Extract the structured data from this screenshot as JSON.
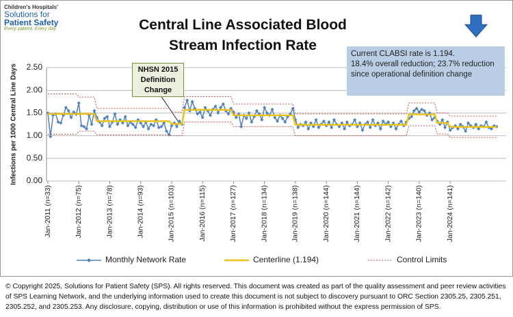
{
  "logo": {
    "lines": [
      "Children's Hospitals'",
      "Solutions for",
      "Patient Safety",
      "Every patient. Every day."
    ]
  },
  "footer": "© Copyright 2025, Solutions for Patient Safety (SPS).  All rights reserved.  This document was created as part of the quality assessment and peer review activities of SPS Learning Network, and the underlying information used to create this document is not subject to discovery pursuant to ORC Section 2305.25, 2305.251, 2305.252, and 2305.253. Any disclosure, copying, distribution or use of this information is prohibited without the express permission of SPS.",
  "chart_data": {
    "type": "line",
    "title": "Central Line Associated Blood Stream Infection Rate",
    "y_label": "Infections per 1000 Central Line Days",
    "info_box": [
      "Current CLABSI rate is 1.194.",
      "18.4% overall reduction; 23.7% reduction since operational definition change"
    ],
    "annotation": "NHSN 2015 Definition Change",
    "ylim": [
      0,
      2.5
    ],
    "yticks": [
      {
        "value": 0,
        "label": "0.00"
      },
      {
        "value": 0.5,
        "label": "0.50"
      },
      {
        "value": 1,
        "label": "1.00"
      },
      {
        "value": 1.5,
        "label": "1.50"
      },
      {
        "value": 2,
        "label": "2.00"
      },
      {
        "value": 2.5,
        "label": "2.50"
      }
    ],
    "grid": true,
    "categories": [
      "Jan-2011 (n=33)",
      null,
      null,
      null,
      null,
      null,
      null,
      null,
      null,
      null,
      null,
      null,
      "Jan-2012 (n=75)",
      null,
      null,
      null,
      null,
      null,
      null,
      null,
      null,
      null,
      null,
      null,
      "Jan-2013 (n=78)",
      null,
      null,
      null,
      null,
      null,
      null,
      null,
      null,
      null,
      null,
      null,
      "Jan-2014 (n=93)",
      null,
      null,
      null,
      null,
      null,
      null,
      null,
      null,
      null,
      null,
      null,
      "Jan-2015 (n=103)",
      null,
      null,
      null,
      null,
      null,
      null,
      null,
      null,
      null,
      null,
      null,
      "Jan-2016 (n=115)",
      null,
      null,
      null,
      null,
      null,
      null,
      null,
      null,
      null,
      null,
      null,
      "Jan-2017 (n=127)",
      null,
      null,
      null,
      null,
      null,
      null,
      null,
      null,
      null,
      null,
      null,
      "Jan-2018 (n=134)",
      null,
      null,
      null,
      null,
      null,
      null,
      null,
      null,
      null,
      null,
      null,
      "Jan-2019 (n=138)",
      null,
      null,
      null,
      null,
      null,
      null,
      null,
      null,
      null,
      null,
      null,
      "Jan-2020 (n=144)",
      null,
      null,
      null,
      null,
      null,
      null,
      null,
      null,
      null,
      null,
      null,
      "Jan-2021 (n=144)",
      null,
      null,
      null,
      null,
      null,
      null,
      null,
      null,
      null,
      null,
      null,
      "Jan-2022 (n=142)",
      null,
      null,
      null,
      null,
      null,
      null,
      null,
      null,
      null,
      null,
      null,
      "Jan-2023 (n=140)",
      null,
      null,
      null,
      null,
      null,
      null,
      null,
      null,
      null,
      null,
      null,
      "Jan-2024 (n=141)",
      null,
      null,
      null,
      null,
      null,
      null,
      null,
      null,
      null,
      null,
      null,
      null,
      null,
      null,
      null,
      null,
      null,
      null
    ],
    "series": [
      {
        "name": "Monthly Network Rate",
        "color": "#4f81bd",
        "marker": "diamond",
        "values": [
          1.5,
          0.98,
          1.45,
          1.48,
          1.3,
          1.28,
          1.45,
          1.62,
          1.55,
          1.4,
          1.52,
          1.47,
          1.72,
          1.22,
          1.2,
          1.15,
          1.45,
          1.25,
          1.55,
          1.4,
          1.3,
          1.22,
          1.38,
          1.42,
          1.2,
          1.3,
          1.48,
          1.25,
          1.35,
          1.28,
          1.42,
          1.22,
          1.3,
          1.25,
          1.18,
          1.35,
          1.28,
          1.2,
          1.3,
          1.15,
          1.25,
          1.22,
          1.35,
          1.18,
          1.2,
          1.28,
          1.1,
          1.02,
          1.22,
          1.28,
          1.2,
          1.32,
          1.25,
          1.62,
          1.78,
          1.55,
          1.75,
          1.6,
          1.48,
          1.52,
          1.4,
          1.62,
          1.55,
          1.45,
          1.58,
          1.65,
          1.5,
          1.62,
          1.7,
          1.55,
          1.48,
          1.6,
          1.52,
          1.4,
          1.48,
          1.2,
          1.45,
          1.38,
          1.5,
          1.3,
          1.42,
          1.55,
          1.48,
          1.35,
          1.62,
          1.5,
          1.45,
          1.58,
          1.4,
          1.32,
          1.45,
          1.38,
          1.3,
          1.42,
          1.48,
          1.6,
          1.35,
          1.18,
          1.25,
          1.22,
          1.3,
          1.15,
          1.28,
          1.2,
          1.35,
          1.18,
          1.25,
          1.32,
          1.22,
          1.3,
          1.18,
          1.35,
          1.25,
          1.2,
          1.28,
          1.15,
          1.3,
          1.22,
          1.25,
          1.35,
          1.2,
          1.28,
          1.12,
          1.25,
          1.3,
          1.18,
          1.35,
          1.22,
          1.28,
          1.15,
          1.32,
          1.25,
          1.3,
          1.2,
          1.28,
          1.15,
          1.25,
          1.32,
          1.22,
          1.3,
          1.38,
          1.42,
          1.55,
          1.6,
          1.52,
          1.58,
          1.55,
          1.45,
          1.5,
          1.35,
          1.4,
          1.32,
          1.25,
          1.35,
          1.18,
          1.3,
          1.12,
          1.18,
          1.22,
          1.15,
          1.25,
          1.2,
          1.1,
          1.28,
          1.22,
          1.18,
          1.25,
          1.15,
          1.22,
          1.2,
          1.3,
          1.18,
          1.15,
          1.22,
          1.2
        ]
      },
      {
        "name": "Centerline (1.194)",
        "color": "#e8c21b",
        "values": [
          1.48,
          1.48,
          1.48,
          1.48,
          1.48,
          1.48,
          1.48,
          1.48,
          1.48,
          1.48,
          1.48,
          1.48,
          1.48,
          1.48,
          1.48,
          1.48,
          1.48,
          1.48,
          1.48,
          1.32,
          1.32,
          1.32,
          1.32,
          1.32,
          1.32,
          1.32,
          1.32,
          1.32,
          1.32,
          1.32,
          1.32,
          1.32,
          1.32,
          1.32,
          1.32,
          1.32,
          1.32,
          1.32,
          1.32,
          1.32,
          1.32,
          1.32,
          1.32,
          1.32,
          1.32,
          1.32,
          1.32,
          1.32,
          1.26,
          1.26,
          1.26,
          1.26,
          1.26,
          1.57,
          1.57,
          1.57,
          1.57,
          1.57,
          1.57,
          1.57,
          1.57,
          1.57,
          1.57,
          1.57,
          1.57,
          1.57,
          1.57,
          1.57,
          1.57,
          1.57,
          1.57,
          1.57,
          1.45,
          1.45,
          1.45,
          1.45,
          1.45,
          1.45,
          1.45,
          1.45,
          1.45,
          1.45,
          1.45,
          1.45,
          1.45,
          1.45,
          1.45,
          1.45,
          1.45,
          1.45,
          1.45,
          1.45,
          1.45,
          1.45,
          1.45,
          1.45,
          1.24,
          1.24,
          1.24,
          1.24,
          1.24,
          1.24,
          1.24,
          1.24,
          1.24,
          1.24,
          1.24,
          1.24,
          1.24,
          1.24,
          1.24,
          1.24,
          1.24,
          1.24,
          1.24,
          1.24,
          1.24,
          1.24,
          1.24,
          1.24,
          1.24,
          1.24,
          1.24,
          1.24,
          1.24,
          1.24,
          1.24,
          1.24,
          1.24,
          1.24,
          1.24,
          1.24,
          1.24,
          1.24,
          1.24,
          1.24,
          1.24,
          1.24,
          1.24,
          1.24,
          1.47,
          1.47,
          1.47,
          1.47,
          1.47,
          1.47,
          1.47,
          1.47,
          1.47,
          1.47,
          1.47,
          1.28,
          1.28,
          1.28,
          1.28,
          1.28,
          1.194,
          1.194,
          1.194,
          1.194,
          1.194,
          1.194,
          1.194,
          1.194,
          1.194,
          1.194,
          1.194,
          1.194,
          1.194,
          1.194,
          1.194,
          1.194,
          1.194,
          1.194,
          1.194
        ]
      },
      {
        "name": "Control Limits",
        "color": "#c0504d",
        "dash": true,
        "upper": [
          1.92,
          1.92,
          1.92,
          1.92,
          1.92,
          1.92,
          1.92,
          1.92,
          1.92,
          1.92,
          1.92,
          1.92,
          1.85,
          1.85,
          1.85,
          1.85,
          1.85,
          1.85,
          1.85,
          1.6,
          1.6,
          1.6,
          1.6,
          1.6,
          1.6,
          1.6,
          1.6,
          1.6,
          1.6,
          1.6,
          1.6,
          1.6,
          1.6,
          1.6,
          1.6,
          1.6,
          1.6,
          1.6,
          1.6,
          1.6,
          1.6,
          1.6,
          1.6,
          1.6,
          1.6,
          1.6,
          1.6,
          1.6,
          1.52,
          1.52,
          1.52,
          1.52,
          1.52,
          1.86,
          1.86,
          1.86,
          1.86,
          1.86,
          1.86,
          1.86,
          1.86,
          1.86,
          1.86,
          1.86,
          1.86,
          1.86,
          1.86,
          1.86,
          1.86,
          1.86,
          1.86,
          1.86,
          1.7,
          1.7,
          1.7,
          1.7,
          1.7,
          1.7,
          1.7,
          1.7,
          1.7,
          1.7,
          1.7,
          1.7,
          1.7,
          1.7,
          1.7,
          1.7,
          1.7,
          1.7,
          1.7,
          1.7,
          1.7,
          1.7,
          1.7,
          1.7,
          1.48,
          1.48,
          1.48,
          1.48,
          1.48,
          1.48,
          1.48,
          1.48,
          1.48,
          1.48,
          1.48,
          1.48,
          1.48,
          1.48,
          1.48,
          1.48,
          1.48,
          1.48,
          1.48,
          1.48,
          1.48,
          1.48,
          1.48,
          1.48,
          1.48,
          1.48,
          1.48,
          1.48,
          1.48,
          1.48,
          1.48,
          1.48,
          1.48,
          1.48,
          1.48,
          1.48,
          1.48,
          1.48,
          1.48,
          1.48,
          1.48,
          1.48,
          1.48,
          1.48,
          1.72,
          1.72,
          1.72,
          1.72,
          1.72,
          1.72,
          1.72,
          1.72,
          1.72,
          1.72,
          1.72,
          1.5,
          1.5,
          1.5,
          1.5,
          1.5,
          1.43,
          1.43,
          1.43,
          1.43,
          1.43,
          1.43,
          1.43,
          1.43,
          1.43,
          1.43,
          1.43,
          1.43,
          1.43,
          1.43,
          1.43,
          1.43,
          1.43,
          1.43,
          1.43
        ],
        "lower": [
          1.03,
          1.03,
          1.03,
          1.03,
          1.03,
          1.03,
          1.03,
          1.03,
          1.03,
          1.03,
          1.03,
          1.03,
          1.1,
          1.1,
          1.1,
          1.1,
          1.1,
          1.1,
          1.1,
          1.02,
          1.02,
          1.02,
          1.02,
          1.02,
          1.02,
          1.02,
          1.02,
          1.02,
          1.02,
          1.02,
          1.02,
          1.02,
          1.02,
          1.02,
          1.02,
          1.02,
          1.02,
          1.02,
          1.02,
          1.02,
          1.02,
          1.02,
          1.02,
          1.02,
          1.02,
          1.02,
          1.02,
          1.02,
          1.0,
          1.0,
          1.0,
          1.0,
          1.0,
          1.3,
          1.3,
          1.3,
          1.3,
          1.3,
          1.3,
          1.3,
          1.3,
          1.3,
          1.3,
          1.3,
          1.3,
          1.3,
          1.3,
          1.3,
          1.3,
          1.3,
          1.3,
          1.3,
          1.2,
          1.2,
          1.2,
          1.2,
          1.2,
          1.2,
          1.2,
          1.2,
          1.2,
          1.2,
          1.2,
          1.2,
          1.2,
          1.2,
          1.2,
          1.2,
          1.2,
          1.2,
          1.2,
          1.2,
          1.2,
          1.2,
          1.2,
          1.2,
          1.0,
          1.0,
          1.0,
          1.0,
          1.0,
          1.0,
          1.0,
          1.0,
          1.0,
          1.0,
          1.0,
          1.0,
          1.0,
          1.0,
          1.0,
          1.0,
          1.0,
          1.0,
          1.0,
          1.0,
          1.0,
          1.0,
          1.0,
          1.0,
          1.0,
          1.0,
          1.0,
          1.0,
          1.0,
          1.0,
          1.0,
          1.0,
          1.0,
          1.0,
          1.0,
          1.0,
          1.0,
          1.0,
          1.0,
          1.0,
          1.0,
          1.0,
          1.0,
          1.0,
          1.22,
          1.22,
          1.22,
          1.22,
          1.22,
          1.22,
          1.22,
          1.22,
          1.22,
          1.22,
          1.22,
          1.04,
          1.04,
          1.04,
          1.04,
          1.04,
          0.96,
          0.96,
          0.96,
          0.96,
          0.96,
          0.96,
          0.96,
          0.96,
          0.96,
          0.96,
          0.96,
          0.96,
          0.96,
          0.96,
          0.96,
          0.96,
          0.96,
          0.96,
          0.96
        ]
      }
    ]
  }
}
